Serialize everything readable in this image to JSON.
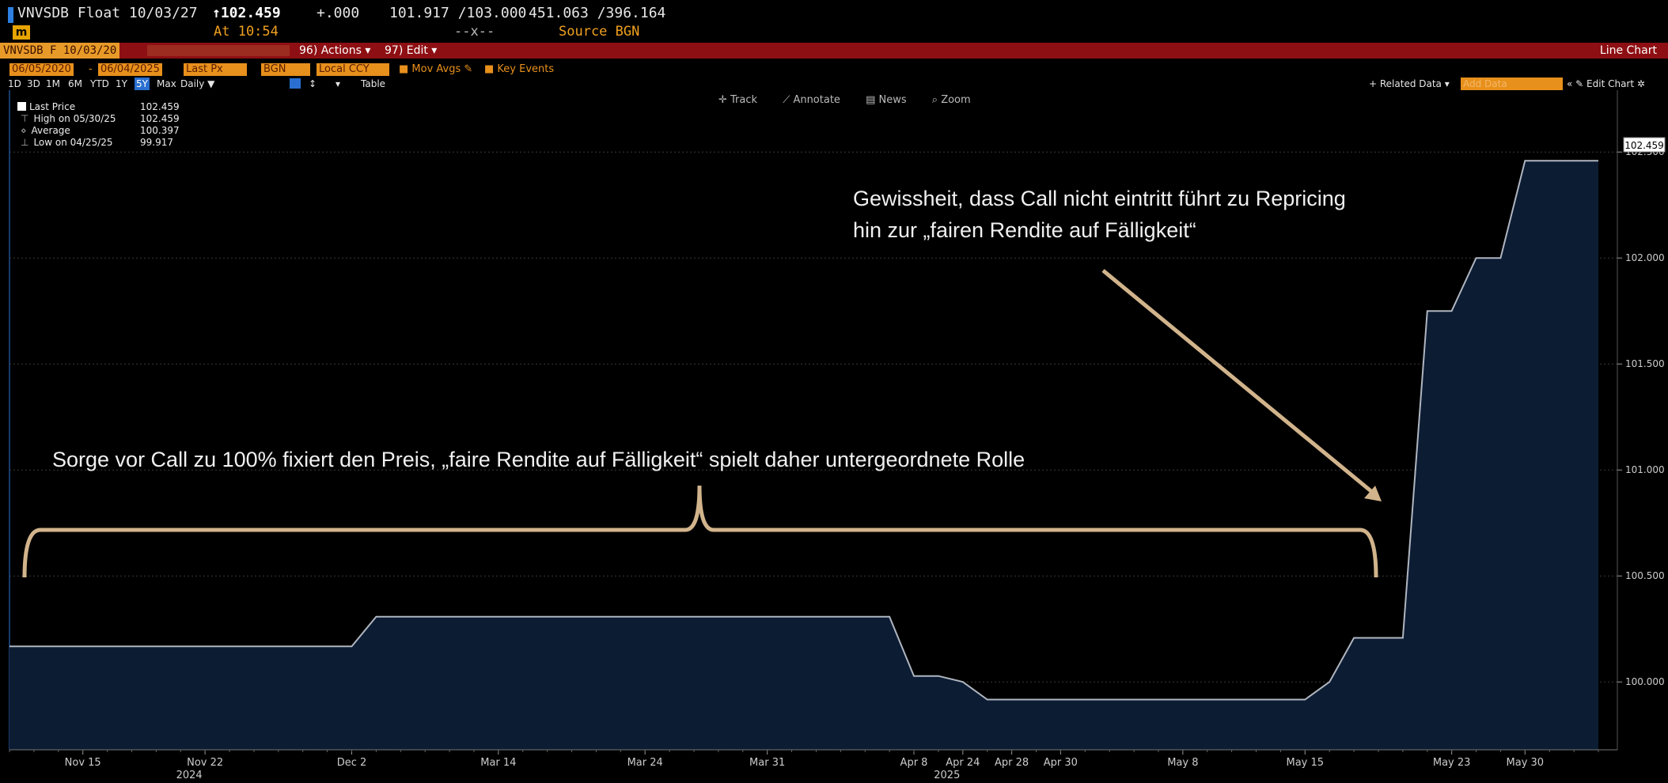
{
  "header": {
    "security": "VNVSDB Float 10/03/27",
    "last_price": "102.459",
    "change": "+.000",
    "bid_ask": "101.917 /103.000",
    "size": "451.063 /396.164",
    "time": "At 10:54",
    "dash": "--x--",
    "source": "Source BGN"
  },
  "toolbar": {
    "ticker": "VNVSDB F 10/03/20",
    "actions": "96) Actions ▾",
    "edit": "97) Edit ▾",
    "view": "Line Chart"
  },
  "options": {
    "start_date": "06/05/2020",
    "end_date": "06/04/2025",
    "field": "Last Px",
    "source": "BGN",
    "currency": "Local CCY",
    "mov_avgs": "Mov Avgs",
    "key_events": "Key Events"
  },
  "tabs": [
    "1D",
    "3D",
    "1M",
    "6M",
    "YTD",
    "1Y",
    "5Y",
    "Max",
    "Daily ▼"
  ],
  "active_tab": "5Y",
  "table_label": "Table",
  "right_tools": {
    "related": "+ Related Data ▾",
    "add_data": "Add Data",
    "edit_chart": "Edit Chart"
  },
  "chart_tools": [
    "Track",
    "Annotate",
    "News",
    "Zoom"
  ],
  "legend": [
    {
      "label": "Last Price",
      "value": "102.459"
    },
    {
      "label": "High on 05/30/25",
      "value": "102.459"
    },
    {
      "label": "Average",
      "value": "100.397"
    },
    {
      "label": "Low on 04/25/25",
      "value": "99.917"
    }
  ],
  "annotations": {
    "top_line1": "Gewissheit, dass Call nicht eintritt führt zu Repricing",
    "top_line2": "hin zur „fairen Rendite auf Fälligkeit“",
    "bottom": "Sorge vor Call zu 100% fixiert den Preis, „faire Rendite auf Fälligkeit“ spielt daher untergeordnete Rolle"
  },
  "colors": {
    "fill": "#0c1c33",
    "line": "#b0b6c0",
    "annotation": "#d2b48c",
    "accent_red": "#8e0f13",
    "accent_orange": "#e8901c"
  },
  "chart_data": {
    "type": "area",
    "title": "",
    "xlabel": "",
    "ylabel": "",
    "ylim": [
      99.68,
      102.65
    ],
    "yticks": [
      100.0,
      100.5,
      101.0,
      101.5,
      102.0,
      102.5
    ],
    "ytick_labels": [
      "100.000",
      "100.500",
      "101.000",
      "101.500",
      "102.000",
      "102.500"
    ],
    "last_label": "102.459",
    "xticks": [
      {
        "i": 3,
        "label": "Nov 15"
      },
      {
        "i": 8,
        "label": "Nov 22",
        "year": "2024"
      },
      {
        "i": 14,
        "label": "Dec 2"
      },
      {
        "i": 20,
        "label": "Mar 14"
      },
      {
        "i": 26,
        "label": "Mar 24"
      },
      {
        "i": 31,
        "label": "Mar 31"
      },
      {
        "i": 37,
        "label": "Apr 8"
      },
      {
        "i": 39,
        "label": "Apr 24",
        "year": "2025"
      },
      {
        "i": 41,
        "label": "Apr 28"
      },
      {
        "i": 43,
        "label": "Apr 30"
      },
      {
        "i": 48,
        "label": "May 8"
      },
      {
        "i": 53,
        "label": "May 15"
      },
      {
        "i": 59,
        "label": "May 23"
      },
      {
        "i": 62,
        "label": "May 30"
      }
    ],
    "series": [
      {
        "values": [
          100.168,
          100.168,
          100.168,
          100.168,
          100.168,
          100.168,
          100.168,
          100.168,
          100.168,
          100.168,
          100.168,
          100.168,
          100.168,
          100.168,
          100.168,
          100.308,
          100.308,
          100.308,
          100.308,
          100.308,
          100.308,
          100.308,
          100.308,
          100.308,
          100.308,
          100.308,
          100.308,
          100.308,
          100.308,
          100.308,
          100.308,
          100.308,
          100.308,
          100.308,
          100.308,
          100.308,
          100.308,
          100.028,
          100.028,
          100.0,
          99.917,
          99.917,
          99.917,
          99.917,
          99.917,
          99.917,
          99.917,
          99.917,
          99.917,
          99.917,
          99.917,
          99.917,
          99.917,
          99.917,
          100.0,
          100.208,
          100.208,
          100.208,
          101.75,
          101.75,
          102.0,
          102.0,
          102.459,
          102.459,
          102.459,
          102.459
        ]
      }
    ]
  }
}
